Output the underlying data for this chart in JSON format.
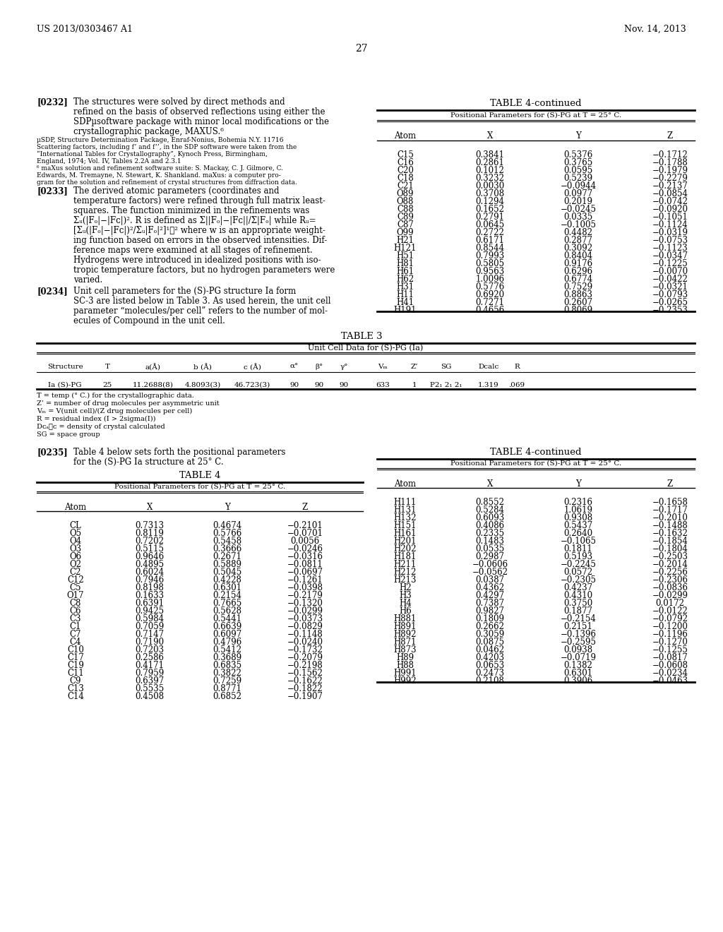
{
  "page_header_left": "US 2013/0303467 A1",
  "page_header_right": "Nov. 14, 2013",
  "page_number": "27",
  "bg_color": "#ffffff",
  "table4cont_top_rows": [
    [
      "C15",
      "0.3841",
      "0.5376",
      "−0.1712"
    ],
    [
      "C16",
      "0.2861",
      "0.3765",
      "−0.1788"
    ],
    [
      "C20",
      "0.1012",
      "0.0595",
      "−0.1979"
    ],
    [
      "C18",
      "0.3232",
      "0.5239",
      "−0.2279"
    ],
    [
      "C21",
      "0.0030",
      "−0.0944",
      "−0.2137"
    ],
    [
      "O89",
      "0.3708",
      "0.0977",
      "−0.0854"
    ],
    [
      "O88",
      "0.1294",
      "0.2019",
      "−0.0742"
    ],
    [
      "C88",
      "0.1652",
      "−0.0245",
      "−0.0920"
    ],
    [
      "C89",
      "0.2791",
      "0.0335",
      "−0.1051"
    ],
    [
      "C87",
      "0.0645",
      "−0.1005",
      "−0.1124"
    ],
    [
      "O99",
      "0.2722",
      "0.4482",
      "−0.0319"
    ],
    [
      "H21",
      "0.6171",
      "0.2877",
      "−0.0753"
    ],
    [
      "H121",
      "0.8544",
      "0.3092",
      "−0.1123"
    ],
    [
      "H51",
      "0.7993",
      "0.8404",
      "−0.0347"
    ],
    [
      "H81",
      "0.5805",
      "0.9176",
      "−0.1225"
    ],
    [
      "H61",
      "0.9563",
      "0.6296",
      "−0.0070"
    ],
    [
      "H62",
      "1.0096",
      "0.6774",
      "−0.0422"
    ],
    [
      "H31",
      "0.5776",
      "0.7529",
      "−0.0321"
    ],
    [
      "H11",
      "0.6920",
      "0.8863",
      "−0.0793"
    ],
    [
      "H41",
      "0.7271",
      "0.2607",
      "−0.0265"
    ],
    [
      "H191",
      "0.4656",
      "0.8069",
      "−0.2353"
    ]
  ],
  "table4cont_bottom_rows": [
    [
      "H111",
      "0.8552",
      "0.2316",
      "−0.1658"
    ],
    [
      "H131",
      "0.5284",
      "1.0619",
      "−0.1717"
    ],
    [
      "H132",
      "0.6093",
      "0.9308",
      "−0.2010"
    ],
    [
      "H151",
      "0.4086",
      "0.5437",
      "−0.1488"
    ],
    [
      "H161",
      "0.2335",
      "0.2640",
      "−0.1632"
    ],
    [
      "H201",
      "0.1483",
      "−0.1065",
      "−0.1854"
    ],
    [
      "H202",
      "0.0535",
      "0.1811",
      "−0.1804"
    ],
    [
      "H181",
      "0.2987",
      "0.5193",
      "−0.2503"
    ],
    [
      "H211",
      "−0.0606",
      "−0.2245",
      "−0.2014"
    ],
    [
      "H212",
      "−0.0562",
      "0.0572",
      "−0.2256"
    ],
    [
      "H213",
      "0.0387",
      "−0.2305",
      "−0.2306"
    ],
    [
      "H2",
      "0.4362",
      "0.4237",
      "−0.0836"
    ],
    [
      "H3",
      "0.4297",
      "0.4310",
      "−0.0299"
    ],
    [
      "H4",
      "0.7387",
      "0.3750",
      "0.0172"
    ],
    [
      "H6",
      "0.9827",
      "0.1877",
      "−0.0122"
    ],
    [
      "H881",
      "0.1809",
      "−0.2154",
      "−0.0792"
    ],
    [
      "H891",
      "0.2662",
      "0.2151",
      "−0.1200"
    ],
    [
      "H892",
      "0.3059",
      "−0.1396",
      "−0.1196"
    ],
    [
      "H871",
      "0.0875",
      "−0.2595",
      "−0.1270"
    ],
    [
      "H873",
      "0.0462",
      "0.0938",
      "−0.1255"
    ],
    [
      "H89",
      "0.4203",
      "−0.0719",
      "−0.0817"
    ],
    [
      "H88",
      "0.0653",
      "0.1382",
      "−0.0608"
    ],
    [
      "H991",
      "0.2473",
      "0.6301",
      "−0.0234"
    ],
    [
      "H992",
      "0.2108",
      "0.3906",
      "−0.0463"
    ]
  ],
  "table3_headers": [
    "Structure",
    "T",
    "a(Å)",
    "b (Å)",
    "c (Å)",
    "α°",
    "β°",
    "γ°",
    "Vₘ",
    "Z’",
    "SG",
    "Dcalc",
    "R"
  ],
  "table3_row": [
    "Ia (S)-PG",
    "25",
    "11.2688(8)",
    "4.8093(3)",
    "46.723(3)",
    "90",
    "90",
    "90",
    "633",
    "1",
    "P2₁ 2₁ 2₁",
    "1.319",
    ".069"
  ],
  "table3_notes": [
    "T = temp (° C.) for the crystallographic data.",
    "Z’ = number of drug molecules per asymmetric unit",
    "Vₘ = V(unit cell)/(Z drug molecules per cell)",
    "R = residual index (I > 2sigma(I))",
    "Dᴄₐℓᴄ = density of crystal calculated",
    "SG = space group"
  ],
  "table4_rows": [
    [
      "CL",
      "0.7313",
      "0.4674",
      "−0.2101"
    ],
    [
      "O5",
      "0.8119",
      "0.5766",
      "−0.0701"
    ],
    [
      "O4",
      "0.7202",
      "0.5458",
      "0.0056"
    ],
    [
      "O3",
      "0.5115",
      "0.3666",
      "−0.0246"
    ],
    [
      "O6",
      "0.9646",
      "0.2671",
      "−0.0316"
    ],
    [
      "O2",
      "0.4895",
      "0.5889",
      "−0.0811"
    ],
    [
      "C2",
      "0.6024",
      "0.5045",
      "−0.0697"
    ],
    [
      "C12",
      "0.7946",
      "0.4228",
      "−0.1261"
    ],
    [
      "C5",
      "0.8198",
      "0.6301",
      "−0.0398"
    ],
    [
      "O17",
      "0.1633",
      "0.2154",
      "−0.2179"
    ],
    [
      "C8",
      "0.6391",
      "0.7665",
      "−0.1320"
    ],
    [
      "C6",
      "0.9425",
      "0.5628",
      "−0.0299"
    ],
    [
      "C3",
      "0.5984",
      "0.5441",
      "−0.0373"
    ],
    [
      "C1",
      "0.7059",
      "0.6639",
      "−0.0829"
    ],
    [
      "C7",
      "0.7147",
      "0.6097",
      "−0.1148"
    ],
    [
      "C4",
      "0.7190",
      "0.4796",
      "−0.0240"
    ],
    [
      "C10",
      "0.7203",
      "0.5412",
      "−0.1732"
    ],
    [
      "C17",
      "0.2586",
      "0.3689",
      "−0.2079"
    ],
    [
      "C19",
      "0.4171",
      "0.6835",
      "−0.2198"
    ],
    [
      "C11",
      "0.7959",
      "0.3822",
      "−0.1562"
    ],
    [
      "C9",
      "0.6397",
      "0.7259",
      "−0.1622"
    ],
    [
      "C13",
      "0.5535",
      "0.8771",
      "−0.1822"
    ],
    [
      "C14",
      "0.4508",
      "0.6852",
      "−0.1907"
    ]
  ]
}
